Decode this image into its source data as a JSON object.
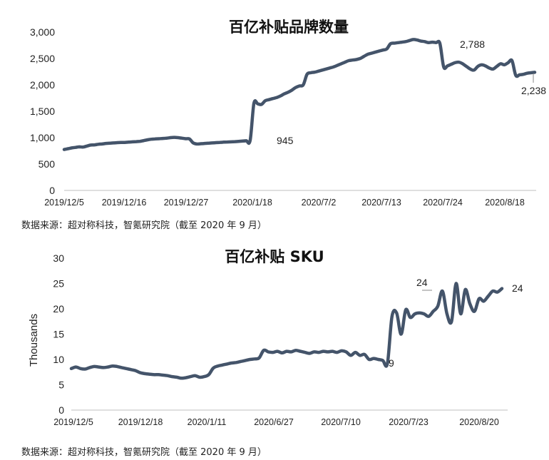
{
  "chart_data": [
    {
      "type": "line",
      "title": "百亿补贴品牌数量",
      "ylim": [
        0,
        3000
      ],
      "yticks": [
        "0",
        "500",
        "1,000",
        "1,500",
        "2,000",
        "2,500",
        "3,000"
      ],
      "ytick_values": [
        0,
        500,
        1000,
        1500,
        2000,
        2500,
        3000
      ],
      "xticks": [
        "2019/12/5",
        "2019/12/16",
        "2019/12/27",
        "2020/1/18",
        "2020/7/2",
        "2020/7/13",
        "2020/7/24",
        "2020/8/18"
      ],
      "color": "#44546a",
      "series": [
        {
          "values": [
            775,
            790,
            805,
            815,
            825,
            822,
            840,
            860,
            862,
            875,
            880,
            890,
            895,
            900,
            905,
            908,
            910,
            915,
            920,
            925,
            930,
            945,
            960,
            970,
            975,
            980,
            985,
            990,
            1000,
            1005,
            1000,
            990,
            980,
            975,
            900,
            880,
            885,
            890,
            895,
            900,
            905,
            910,
            915,
            918,
            920,
            925,
            930,
            935,
            940,
            945,
            1650,
            1640,
            1630,
            1700,
            1720,
            1740,
            1760,
            1790,
            1830,
            1860,
            1900,
            1950,
            1980,
            2000,
            2200,
            2230,
            2240,
            2260,
            2280,
            2300,
            2320,
            2340,
            2370,
            2400,
            2430,
            2460,
            2470,
            2480,
            2500,
            2540,
            2580,
            2600,
            2620,
            2640,
            2660,
            2680,
            2780,
            2790,
            2800,
            2810,
            2820,
            2840,
            2860,
            2850,
            2830,
            2820,
            2800,
            2810,
            2800,
            2788,
            2340,
            2360,
            2390,
            2420,
            2430,
            2400,
            2350,
            2300,
            2280,
            2350,
            2380,
            2360,
            2320,
            2300,
            2350,
            2400,
            2380,
            2420,
            2460,
            2180,
            2190,
            2200,
            2220,
            2230,
            2238
          ]
        }
      ],
      "annotations": [
        "945",
        "2,788",
        "2,238"
      ],
      "source": "数据来源：超对称科技，智氪研究院（截至 2020 年 9 月）"
    },
    {
      "type": "line",
      "title": "百亿补贴 SKU",
      "ylabel": "Thousands",
      "ylim": [
        0,
        30
      ],
      "yticks": [
        "0",
        "5",
        "10",
        "15",
        "20",
        "25",
        "30"
      ],
      "ytick_values": [
        0,
        5,
        10,
        15,
        20,
        25,
        30
      ],
      "xticks": [
        "2019/12/5",
        "2019/12/18",
        "2020/1/11",
        "2020/6/27",
        "2020/7/10",
        "2020/7/23",
        "2020/8/20"
      ],
      "color": "#44546a",
      "series": [
        {
          "values": [
            8.2,
            8.5,
            8.2,
            8.1,
            8.4,
            8.6,
            8.5,
            8.4,
            8.5,
            8.7,
            8.6,
            8.4,
            8.2,
            8.0,
            7.8,
            7.4,
            7.2,
            7.1,
            7.0,
            7.0,
            6.9,
            6.8,
            6.6,
            6.5,
            6.3,
            6.4,
            6.6,
            6.8,
            6.5,
            6.6,
            7.0,
            8.3,
            8.7,
            8.9,
            9.1,
            9.3,
            9.4,
            9.6,
            9.8,
            10.0,
            10.1,
            10.3,
            11.8,
            11.5,
            11.4,
            11.6,
            11.3,
            11.6,
            11.5,
            11.8,
            11.6,
            11.4,
            11.2,
            11.5,
            11.4,
            11.6,
            11.5,
            11.6,
            11.4,
            11.7,
            11.5,
            10.8,
            11.4,
            10.8,
            11.0,
            10.0,
            10.2,
            10.0,
            9.8,
            9.2,
            18.5,
            19.2,
            15.0,
            19.8,
            18.3,
            19.0,
            19.2,
            19.0,
            18.5,
            19.5,
            20.5,
            23.5,
            19.0,
            17.5,
            25.0,
            19.0,
            23.8,
            21.0,
            19.5,
            22.0,
            21.5,
            22.5,
            23.5,
            23.3,
            24.0
          ]
        }
      ],
      "annotations": [
        "9",
        "24",
        "24"
      ],
      "source": "数据来源：超对称科技，智氪研究院（截至 2020 年 9 月）"
    }
  ]
}
